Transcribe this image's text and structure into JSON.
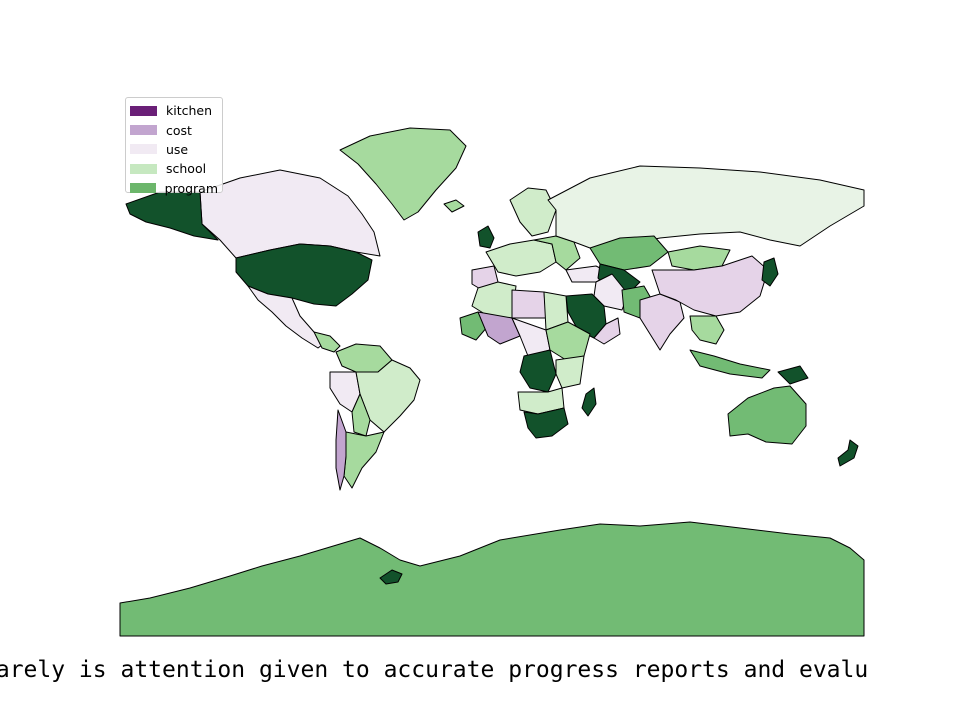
{
  "legend": {
    "items": [
      {
        "label": "kitchen",
        "color": "#6a1f77"
      },
      {
        "label": "cost",
        "color": "#c2a5cf"
      },
      {
        "label": "use",
        "color": "#f1eaf3"
      },
      {
        "label": "school",
        "color": "#c6e8c0"
      },
      {
        "label": "program",
        "color": "#6cb66b"
      }
    ]
  },
  "palette": {
    "dark_green": "#12522b",
    "mid_green": "#72bb74",
    "light_green": "#a6da9e",
    "pale_green": "#d0ecca",
    "very_pale_green": "#e8f3e6",
    "pale_purple": "#f1eaf3",
    "light_purple": "#e5d3e8",
    "mid_purple": "#c2a5cf"
  },
  "caption": {
    "text": "rarely is attention given to accurate progress reports and evalu"
  }
}
